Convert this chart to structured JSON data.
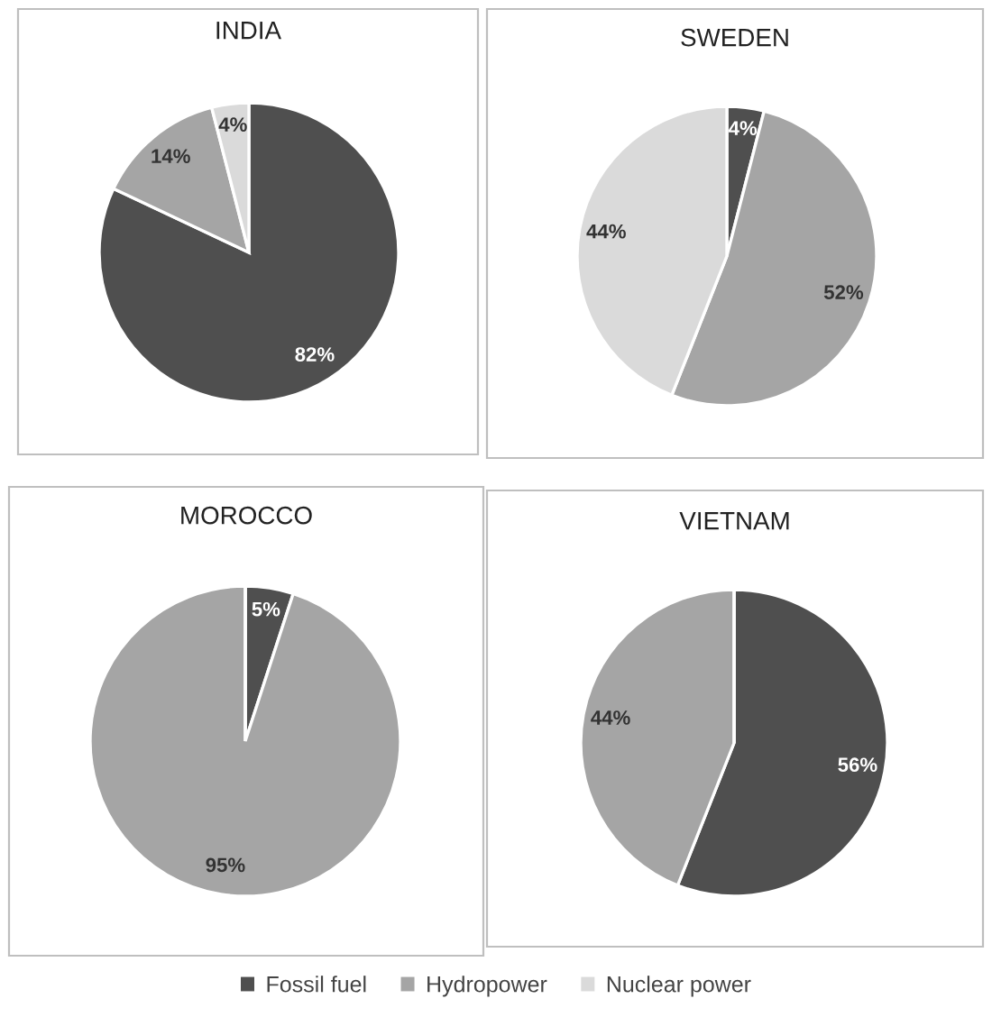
{
  "chart_data": [
    {
      "type": "pie",
      "title": "INDIA",
      "categories": [
        "Fossil fuel",
        "Hydropower",
        "Nuclear power"
      ],
      "values": [
        82,
        14,
        4
      ],
      "colors": [
        "#4f4f4f",
        "#a5a5a5",
        "#dadada"
      ],
      "value_labels": [
        "82%",
        "14%",
        "4%"
      ],
      "legend": "bottom"
    },
    {
      "type": "pie",
      "title": "SWEDEN",
      "categories": [
        null,
        null,
        null
      ],
      "values": [
        4,
        52,
        44
      ],
      "colors": [
        "#4f4f4f",
        "#a5a5a5",
        "#dadada"
      ],
      "value_labels": [
        "4%",
        "52%",
        "44%"
      ]
    },
    {
      "type": "pie",
      "title": "MOROCCO",
      "categories": [
        null,
        null,
        null
      ],
      "values": [
        5,
        95,
        0
      ],
      "colors": [
        "#4f4f4f",
        "#a5a5a5",
        "#dadada"
      ],
      "value_labels": [
        "5%",
        "95%",
        null
      ]
    },
    {
      "type": "pie",
      "title": "VIETNAM",
      "categories": [
        null,
        null,
        null
      ],
      "values": [
        56,
        44,
        0
      ],
      "colors": [
        "#4f4f4f",
        "#a5a5a5",
        "#dadada"
      ],
      "value_labels": [
        "56%",
        "44%",
        null
      ]
    }
  ]
}
